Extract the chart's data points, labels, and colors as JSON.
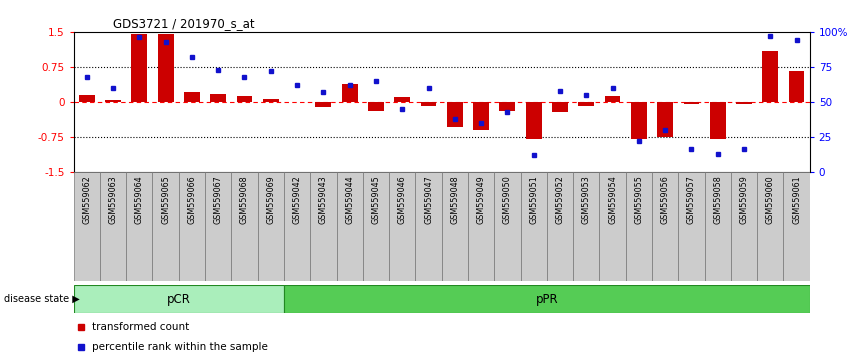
{
  "title": "GDS3721 / 201970_s_at",
  "samples": [
    "GSM559062",
    "GSM559063",
    "GSM559064",
    "GSM559065",
    "GSM559066",
    "GSM559067",
    "GSM559068",
    "GSM559069",
    "GSM559042",
    "GSM559043",
    "GSM559044",
    "GSM559045",
    "GSM559046",
    "GSM559047",
    "GSM559048",
    "GSM559049",
    "GSM559050",
    "GSM559051",
    "GSM559052",
    "GSM559053",
    "GSM559054",
    "GSM559055",
    "GSM559056",
    "GSM559057",
    "GSM559058",
    "GSM559059",
    "GSM559060",
    "GSM559061"
  ],
  "transformed_count": [
    0.15,
    0.03,
    1.45,
    1.45,
    0.22,
    0.17,
    0.13,
    0.05,
    0.0,
    -0.12,
    0.38,
    -0.2,
    0.1,
    -0.08,
    -0.55,
    -0.6,
    -0.2,
    -0.8,
    -0.22,
    -0.08,
    0.12,
    -0.8,
    -0.75,
    -0.05,
    -0.8,
    -0.05,
    1.1,
    0.65
  ],
  "percentile_rank": [
    68,
    60,
    96,
    93,
    82,
    73,
    68,
    72,
    62,
    57,
    62,
    65,
    45,
    60,
    38,
    35,
    43,
    12,
    58,
    55,
    60,
    22,
    30,
    16,
    13,
    16,
    97,
    94
  ],
  "pCR_count": 8,
  "pPR_count": 20,
  "ylim": [
    -1.5,
    1.5
  ],
  "yticks_left": [
    -1.5,
    -0.75,
    0,
    0.75,
    1.5
  ],
  "right_tick_positions": [
    -1.5,
    -0.75,
    0,
    0.75,
    1.5
  ],
  "right_tick_labels": [
    "0",
    "25",
    "50",
    "75",
    "100%"
  ],
  "hline_dotted": [
    0.75,
    -0.75
  ],
  "hline_dashed_red": 0,
  "bar_color": "#cc0000",
  "dot_color": "#1111cc",
  "pcr_color": "#aaeebb",
  "ppr_color": "#55cc55",
  "label_bar": "transformed count",
  "label_dot": "percentile rank within the sample",
  "pcr_label": "pCR",
  "ppr_label": "pPR",
  "disease_state_label": "disease state"
}
